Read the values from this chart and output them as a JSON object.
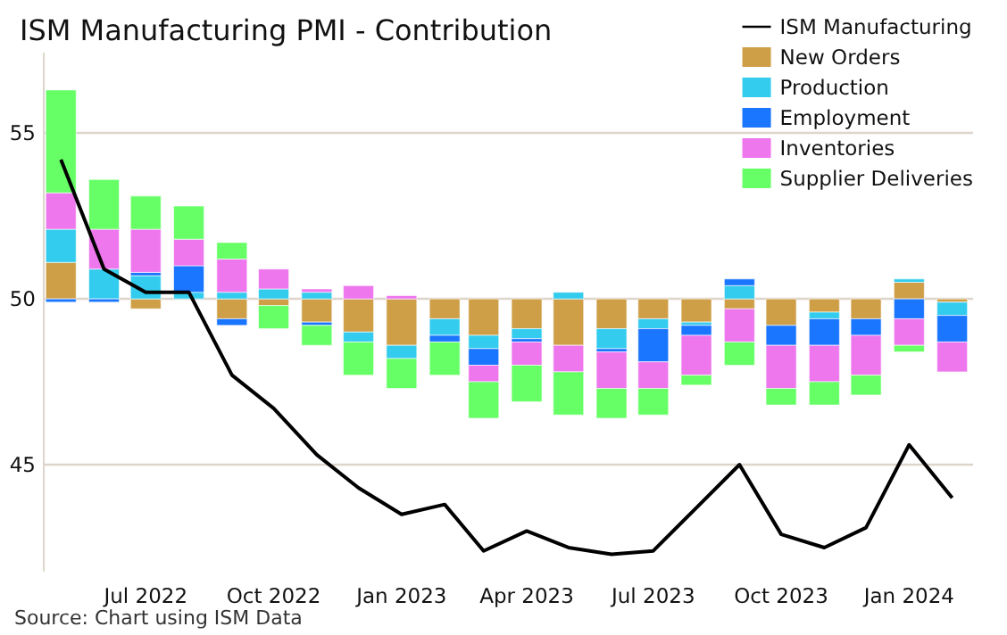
{
  "chart_data": {
    "type": "bar",
    "title": "ISM Manufacturing PMI - Contribution",
    "x": [
      "2022-05",
      "2022-06",
      "2022-07",
      "2022-08",
      "2022-09",
      "2022-10",
      "2022-11",
      "2022-12",
      "2023-01",
      "2023-02",
      "2023-03",
      "2023-04",
      "2023-05",
      "2023-06",
      "2023-07",
      "2023-08",
      "2023-09",
      "2023-10",
      "2023-11",
      "2023-12",
      "2024-01",
      "2024-02"
    ],
    "series": [
      {
        "name": "ISM Manufacturing",
        "type": "line",
        "color": "#000000",
        "values": [
          54.2,
          50.9,
          50.2,
          50.2,
          47.7,
          46.7,
          45.3,
          44.3,
          43.5,
          43.8,
          42.4,
          43.0,
          42.5,
          42.3,
          42.4,
          43.7,
          45.0,
          42.9,
          42.5,
          43.1,
          45.6,
          44.0
        ]
      },
      {
        "name": "New Orders",
        "color": "#cf9f48",
        "values": [
          1.1,
          null,
          -0.3,
          null,
          -0.6,
          -0.2,
          -0.7,
          -1.0,
          -1.4,
          -0.6,
          -1.1,
          -0.9,
          -1.4,
          -0.9,
          -0.6,
          -0.7,
          -0.3,
          -0.8,
          -0.4,
          -0.6,
          0.5,
          -0.1
        ],
        "base": [
          50,
          null,
          50,
          null,
          50,
          50,
          50,
          50,
          50,
          50,
          50,
          50,
          50,
          50,
          50,
          50,
          50,
          50,
          50,
          50,
          50,
          50
        ]
      },
      {
        "name": "Production",
        "color": "#33ccee",
        "values": [
          1.0,
          0.9,
          0.7,
          0.2,
          0.2,
          0.3,
          0.2,
          -0.3,
          -0.4,
          -0.5,
          -0.4,
          -0.3,
          0.2,
          -0.6,
          -0.3,
          -0.1,
          0.4,
          null,
          -0.2,
          null,
          0.1,
          -0.4
        ],
        "base": [
          51.1,
          50,
          50,
          50,
          50,
          50,
          50,
          49.0,
          48.6,
          49.4,
          48.9,
          49.1,
          50,
          49.1,
          49.4,
          49.3,
          50,
          null,
          49.6,
          null,
          50.5,
          49.9
        ]
      },
      {
        "name": "Employment",
        "color": "#1a75ff",
        "values": [
          -0.1,
          -0.1,
          0.1,
          0.8,
          -0.2,
          null,
          -0.1,
          null,
          null,
          -0.2,
          -0.5,
          -0.1,
          null,
          -0.1,
          -1.0,
          -0.3,
          0.2,
          -0.6,
          -0.8,
          -0.5,
          -0.6,
          -0.8
        ],
        "base": [
          50,
          50,
          50.7,
          50.2,
          49.4,
          null,
          49.3,
          null,
          null,
          48.9,
          48.5,
          48.8,
          null,
          48.5,
          49.1,
          49.2,
          50.4,
          49.2,
          49.4,
          49.4,
          50,
          49.5
        ]
      },
      {
        "name": "Inventories",
        "color": "#ee77ee",
        "values": [
          1.1,
          1.2,
          1.3,
          0.8,
          1.0,
          0.6,
          0.1,
          0.4,
          0.1,
          null,
          -0.5,
          -0.7,
          -0.8,
          -1.1,
          -0.8,
          -1.2,
          -1.0,
          -1.3,
          -1.1,
          -1.2,
          -0.8,
          -0.9
        ],
        "base": [
          52.1,
          50.9,
          50.8,
          51.0,
          50.2,
          50.3,
          50.2,
          50,
          50,
          null,
          48.0,
          48.7,
          48.6,
          48.4,
          48.1,
          48.9,
          49.7,
          48.6,
          48.6,
          48.9,
          49.4,
          48.7
        ]
      },
      {
        "name": "Supplier Deliveries",
        "color": "#66ff66",
        "values": [
          3.1,
          1.5,
          1.0,
          1.0,
          0.5,
          -0.7,
          -0.6,
          -1.0,
          -0.9,
          -1.0,
          -1.1,
          -1.1,
          -1.3,
          -0.9,
          -0.8,
          -0.3,
          -0.7,
          -0.5,
          -0.7,
          -0.6,
          -0.2,
          null
        ],
        "base": [
          53.2,
          52.1,
          52.1,
          51.8,
          51.2,
          49.8,
          49.2,
          48.7,
          48.2,
          48.7,
          47.5,
          48.0,
          47.8,
          47.3,
          47.3,
          47.7,
          48.7,
          47.3,
          47.5,
          47.7,
          48.6,
          null
        ]
      }
    ],
    "xlim": [
      "2022-04-18",
      "2024-02-16"
    ],
    "xticks": [
      {
        "value": "2022-07",
        "label": "Jul 2022"
      },
      {
        "value": "2022-10",
        "label": "Oct 2022"
      },
      {
        "value": "2023-01",
        "label": "Jan 2023"
      },
      {
        "value": "2023-04",
        "label": "Apr 2023"
      },
      {
        "value": "2023-07",
        "label": "Jul 2023"
      },
      {
        "value": "2023-10",
        "label": "Oct 2023"
      },
      {
        "value": "2024-01",
        "label": "Jan 2024"
      }
    ],
    "ylim": [
      41.8,
      57.4
    ],
    "yticks": [
      45,
      50,
      55
    ],
    "grid": "y",
    "legend": "top right",
    "annotations": [
      "Source: Chart using ISM Data"
    ]
  }
}
